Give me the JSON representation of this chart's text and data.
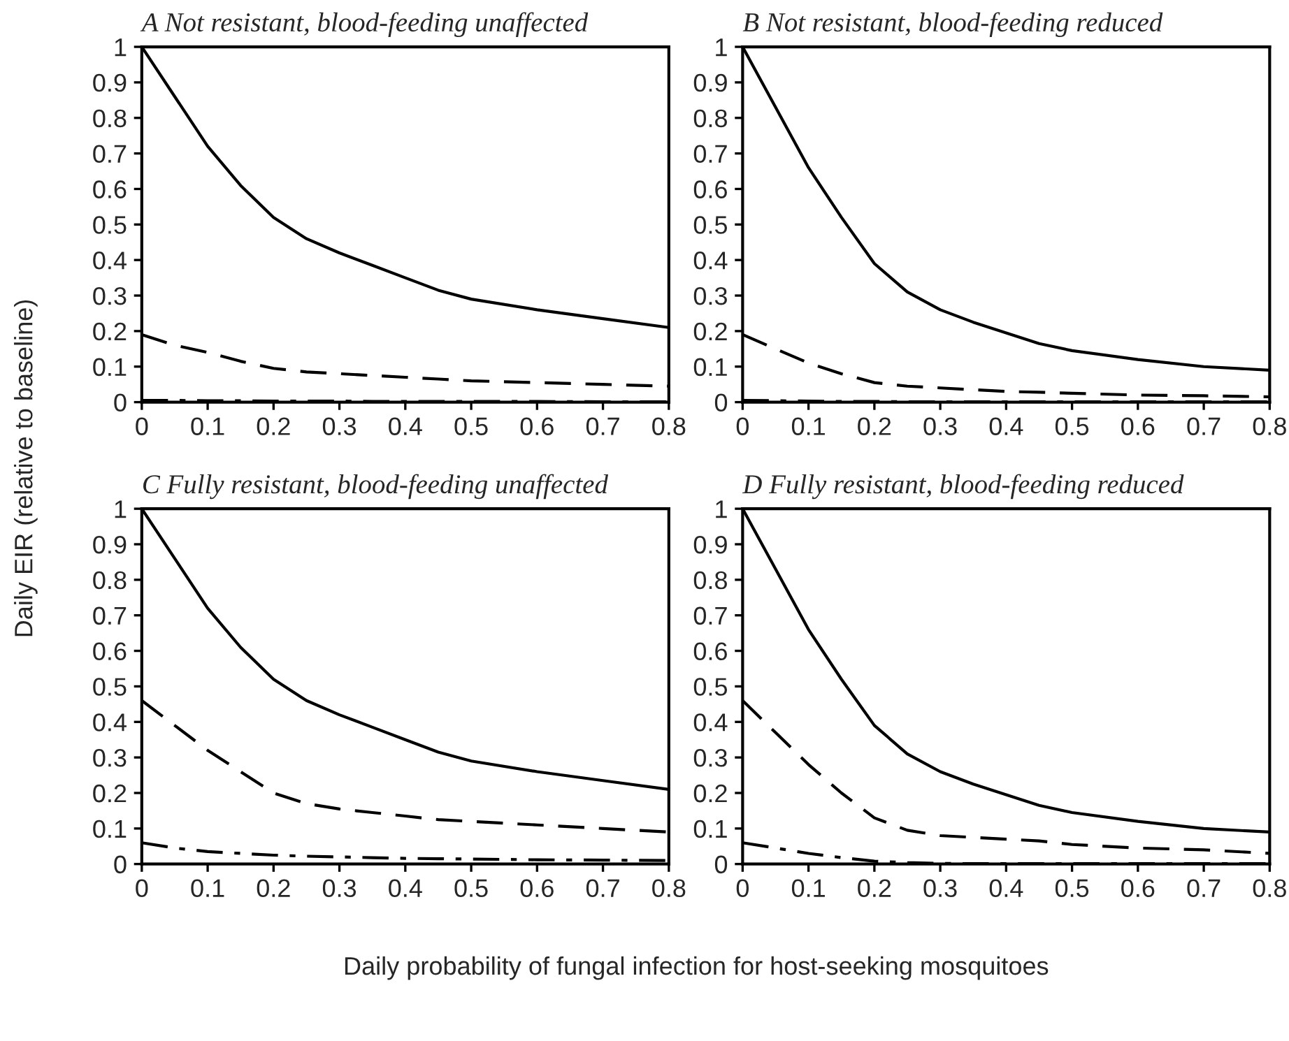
{
  "chart_data": [
    {
      "type": "line",
      "title": "A Not resistant, blood-feeding unaffected",
      "ylabel": "Daily EIR (relative to baseline)",
      "x": [
        0,
        0.05,
        0.1,
        0.15,
        0.2,
        0.25,
        0.3,
        0.35,
        0.4,
        0.45,
        0.5,
        0.6,
        0.7,
        0.8
      ],
      "xlim": [
        0,
        0.8
      ],
      "ylim": [
        0,
        1
      ],
      "xticks": [
        0,
        0.1,
        0.2,
        0.3,
        0.4,
        0.5,
        0.6,
        0.7,
        0.8
      ],
      "yticks": [
        0,
        0.1,
        0.2,
        0.3,
        0.4,
        0.5,
        0.6,
        0.7,
        0.8,
        0.9,
        1
      ],
      "grid": false,
      "legend": false,
      "series": [
        {
          "color": "#000000",
          "line_style": "solid",
          "values": [
            1,
            0.86,
            0.72,
            0.61,
            0.52,
            0.46,
            0.42,
            0.385,
            0.35,
            0.315,
            0.29,
            0.26,
            0.235,
            0.21
          ]
        },
        {
          "color": "#000000",
          "line_style": "dashed",
          "values": [
            0.19,
            0.16,
            0.14,
            0.115,
            0.095,
            0.085,
            0.08,
            0.075,
            0.07,
            0.065,
            0.06,
            0.055,
            0.05,
            0.045
          ]
        },
        {
          "color": "#000000",
          "line_style": "dashdot",
          "values": [
            0.005,
            0.005,
            0.004,
            0.004,
            0.003,
            0.003,
            0.003,
            0.002,
            0.002,
            0.002,
            0.002,
            0.002,
            0.001,
            0.001
          ]
        }
      ]
    },
    {
      "type": "line",
      "title": "B Not resistant, blood-feeding reduced",
      "x": [
        0,
        0.05,
        0.1,
        0.15,
        0.2,
        0.25,
        0.3,
        0.35,
        0.4,
        0.45,
        0.5,
        0.6,
        0.7,
        0.8
      ],
      "xlim": [
        0,
        0.8
      ],
      "ylim": [
        0,
        1
      ],
      "xticks": [
        0,
        0.1,
        0.2,
        0.3,
        0.4,
        0.5,
        0.6,
        0.7,
        0.8
      ],
      "yticks": [
        0,
        0.1,
        0.2,
        0.3,
        0.4,
        0.5,
        0.6,
        0.7,
        0.8,
        0.9,
        1
      ],
      "grid": false,
      "legend": false,
      "series": [
        {
          "color": "#000000",
          "line_style": "solid",
          "values": [
            1,
            0.83,
            0.66,
            0.52,
            0.39,
            0.31,
            0.26,
            0.225,
            0.195,
            0.165,
            0.145,
            0.12,
            0.1,
            0.09
          ]
        },
        {
          "color": "#000000",
          "line_style": "dashed",
          "values": [
            0.19,
            0.15,
            0.11,
            0.08,
            0.055,
            0.045,
            0.04,
            0.035,
            0.03,
            0.028,
            0.025,
            0.02,
            0.018,
            0.015
          ]
        },
        {
          "color": "#000000",
          "line_style": "dashdot",
          "values": [
            0.005,
            0.004,
            0.003,
            0.002,
            0.002,
            0.001,
            0.001,
            0.001,
            0.001,
            0.001,
            0.001,
            0.001,
            0.001,
            0.001
          ]
        }
      ]
    },
    {
      "type": "line",
      "title": "C Fully resistant, blood-feeding unaffected",
      "xlabel": "Daily probability of fungal infection for host-seeking mosquitoes",
      "x": [
        0,
        0.05,
        0.1,
        0.15,
        0.2,
        0.25,
        0.3,
        0.35,
        0.4,
        0.45,
        0.5,
        0.6,
        0.7,
        0.8
      ],
      "xlim": [
        0,
        0.8
      ],
      "ylim": [
        0,
        1
      ],
      "xticks": [
        0,
        0.1,
        0.2,
        0.3,
        0.4,
        0.5,
        0.6,
        0.7,
        0.8
      ],
      "yticks": [
        0,
        0.1,
        0.2,
        0.3,
        0.4,
        0.5,
        0.6,
        0.7,
        0.8,
        0.9,
        1
      ],
      "grid": false,
      "legend": false,
      "series": [
        {
          "color": "#000000",
          "line_style": "solid",
          "values": [
            1,
            0.86,
            0.72,
            0.61,
            0.52,
            0.46,
            0.42,
            0.385,
            0.35,
            0.315,
            0.29,
            0.26,
            0.235,
            0.21
          ]
        },
        {
          "color": "#000000",
          "line_style": "dashed",
          "values": [
            0.46,
            0.39,
            0.32,
            0.26,
            0.2,
            0.17,
            0.155,
            0.145,
            0.135,
            0.125,
            0.12,
            0.11,
            0.1,
            0.09
          ]
        },
        {
          "color": "#000000",
          "line_style": "dashdot",
          "values": [
            0.06,
            0.045,
            0.035,
            0.03,
            0.025,
            0.022,
            0.02,
            0.018,
            0.016,
            0.015,
            0.014,
            0.012,
            0.011,
            0.01
          ]
        }
      ]
    },
    {
      "type": "line",
      "title": "D Fully resistant, blood-feeding reduced",
      "x": [
        0,
        0.05,
        0.1,
        0.15,
        0.2,
        0.25,
        0.3,
        0.35,
        0.4,
        0.45,
        0.5,
        0.6,
        0.7,
        0.8
      ],
      "xlim": [
        0,
        0.8
      ],
      "ylim": [
        0,
        1
      ],
      "xticks": [
        0,
        0.1,
        0.2,
        0.3,
        0.4,
        0.5,
        0.6,
        0.7,
        0.8
      ],
      "yticks": [
        0,
        0.1,
        0.2,
        0.3,
        0.4,
        0.5,
        0.6,
        0.7,
        0.8,
        0.9,
        1
      ],
      "grid": false,
      "legend": false,
      "series": [
        {
          "color": "#000000",
          "line_style": "solid",
          "values": [
            1,
            0.83,
            0.66,
            0.52,
            0.39,
            0.31,
            0.26,
            0.225,
            0.195,
            0.165,
            0.145,
            0.12,
            0.1,
            0.09
          ]
        },
        {
          "color": "#000000",
          "line_style": "dashed",
          "values": [
            0.46,
            0.37,
            0.28,
            0.2,
            0.13,
            0.095,
            0.08,
            0.075,
            0.07,
            0.065,
            0.055,
            0.045,
            0.04,
            0.03
          ]
        },
        {
          "color": "#000000",
          "line_style": "dashdot",
          "values": [
            0.06,
            0.045,
            0.03,
            0.018,
            0.008,
            0.004,
            0.002,
            0.001,
            0.001,
            0.001,
            0.001,
            0.001,
            0.001,
            0.001
          ]
        }
      ]
    }
  ]
}
